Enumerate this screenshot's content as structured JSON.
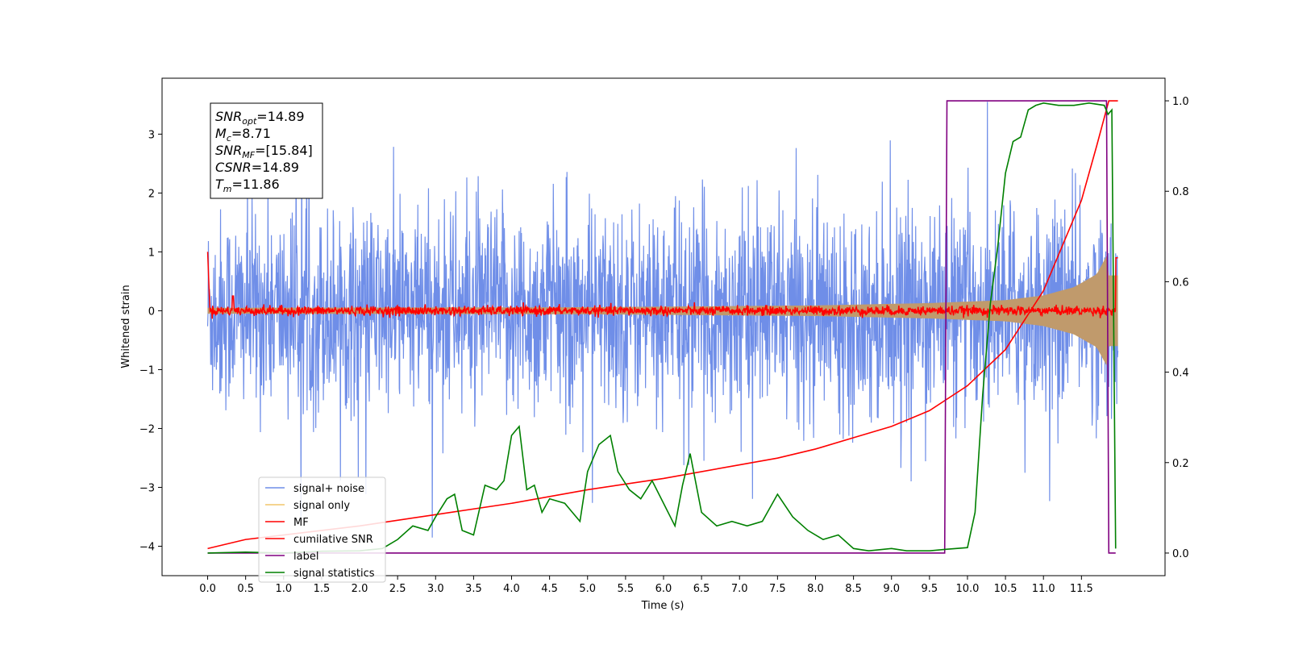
{
  "chart_data": {
    "type": "line",
    "xlabel": "Time (s)",
    "ylabel": "Whitened strain",
    "xlim": [
      -0.6,
      12.6
    ],
    "ylim": [
      -4.5,
      3.95
    ],
    "y2lim": [
      -0.05,
      1.05
    ],
    "xticks": [
      "0.0",
      "0.5",
      "1.0",
      "1.5",
      "2.0",
      "2.5",
      "3.0",
      "3.5",
      "4.0",
      "4.5",
      "5.0",
      "5.5",
      "6.0",
      "6.5",
      "7.0",
      "7.5",
      "8.0",
      "8.5",
      "9.0",
      "9.5",
      "10.0",
      "10.5",
      "11.0",
      "11.5"
    ],
    "xtick_values": [
      0.0,
      0.5,
      1.0,
      1.5,
      2.0,
      2.5,
      3.0,
      3.5,
      4.0,
      4.5,
      5.0,
      5.5,
      6.0,
      6.5,
      7.0,
      7.5,
      8.0,
      8.5,
      9.0,
      9.5,
      10.0,
      10.5,
      11.0,
      11.5
    ],
    "yticks": [
      "−4",
      "−3",
      "−2",
      "−1",
      "0",
      "1",
      "2",
      "3"
    ],
    "ytick_values": [
      -4,
      -3,
      -2,
      -1,
      0,
      1,
      2,
      3
    ],
    "y2ticks": [
      "0.0",
      "0.2",
      "0.4",
      "0.6",
      "0.8",
      "1.0"
    ],
    "y2tick_values": [
      0.0,
      0.2,
      0.4,
      0.6,
      0.8,
      1.0
    ],
    "grid": false,
    "legend_position": "lower-left",
    "annotation_lines": [
      {
        "label": "SNR",
        "sub": "opt",
        "value": "=14.89"
      },
      {
        "label": "M",
        "sub": "c",
        "value": "=8.71"
      },
      {
        "label": "SNR",
        "sub": "MF",
        "value": "=[15.84]"
      },
      {
        "label": "CSNR",
        "sub": "",
        "value": "=14.89"
      },
      {
        "label": "T",
        "sub": "m",
        "value": "=11.86"
      }
    ],
    "series": [
      {
        "name": "signal+ noise",
        "color": "#6f8ee8",
        "axis": "left",
        "kind": "noise",
        "x_range": [
          0,
          11.98
        ],
        "envelope_std": 0.85
      },
      {
        "name": "signal only",
        "color": "#f2c56b",
        "axis": "left",
        "kind": "chirp",
        "x_range": [
          0,
          11.98
        ],
        "amplitude_x": [
          0,
          5,
          8,
          9.5,
          10.5,
          11.0,
          11.4,
          11.7,
          11.86
        ],
        "amplitude_y": [
          0.05,
          0.06,
          0.09,
          0.13,
          0.18,
          0.26,
          0.4,
          0.62,
          1.0
        ]
      },
      {
        "name": "MF",
        "color": "#ff0000",
        "axis": "left",
        "kind": "mf",
        "x_range": [
          0,
          11.98
        ],
        "start_value": 1.0,
        "peak_x": 0.33,
        "peak_y": 0.25,
        "noise_std": 0.04
      },
      {
        "name": "cumilative SNR",
        "color": "#ff0000",
        "axis": "right",
        "x": [
          0.0,
          0.5,
          1.0,
          2.0,
          3.0,
          4.0,
          5.0,
          6.0,
          7.0,
          7.5,
          8.0,
          8.5,
          9.0,
          9.5,
          10.0,
          10.5,
          11.0,
          11.5,
          11.7,
          11.86,
          11.87,
          11.98
        ],
        "y": [
          0.01,
          0.03,
          0.04,
          0.06,
          0.085,
          0.11,
          0.14,
          0.165,
          0.195,
          0.21,
          0.23,
          0.255,
          0.28,
          0.315,
          0.37,
          0.45,
          0.58,
          0.78,
          0.9,
          1.0,
          1.0,
          1.0
        ]
      },
      {
        "name": "label",
        "color": "#800080",
        "axis": "right",
        "x": [
          0.0,
          9.7,
          9.73,
          11.83,
          11.86,
          11.95
        ],
        "y": [
          0.0,
          0.0,
          1.0,
          1.0,
          0.0,
          0.0
        ]
      },
      {
        "name": "signal statistics",
        "color": "#008000",
        "axis": "right",
        "x": [
          0.0,
          0.5,
          1.0,
          1.5,
          2.0,
          2.3,
          2.5,
          2.7,
          2.9,
          3.0,
          3.15,
          3.25,
          3.35,
          3.5,
          3.65,
          3.8,
          3.9,
          4.0,
          4.1,
          4.2,
          4.3,
          4.4,
          4.5,
          4.7,
          4.9,
          5.0,
          5.15,
          5.3,
          5.4,
          5.55,
          5.7,
          5.85,
          6.0,
          6.15,
          6.25,
          6.35,
          6.5,
          6.7,
          6.9,
          7.1,
          7.3,
          7.5,
          7.7,
          7.9,
          8.1,
          8.3,
          8.5,
          8.7,
          9.0,
          9.2,
          9.5,
          9.7,
          10.0,
          10.1,
          10.2,
          10.3,
          10.4,
          10.5,
          10.6,
          10.7,
          10.8,
          10.9,
          11.0,
          11.2,
          11.4,
          11.6,
          11.8,
          11.85,
          11.9,
          11.95
        ],
        "y": [
          0.0,
          0.002,
          0.0,
          0.004,
          0.005,
          0.01,
          0.03,
          0.06,
          0.05,
          0.08,
          0.12,
          0.13,
          0.05,
          0.04,
          0.15,
          0.14,
          0.16,
          0.26,
          0.28,
          0.14,
          0.15,
          0.09,
          0.12,
          0.11,
          0.07,
          0.18,
          0.24,
          0.26,
          0.18,
          0.14,
          0.12,
          0.16,
          0.11,
          0.06,
          0.15,
          0.22,
          0.09,
          0.06,
          0.07,
          0.06,
          0.07,
          0.13,
          0.08,
          0.05,
          0.03,
          0.04,
          0.01,
          0.005,
          0.01,
          0.005,
          0.005,
          0.008,
          0.012,
          0.09,
          0.35,
          0.55,
          0.68,
          0.84,
          0.91,
          0.92,
          0.98,
          0.99,
          0.995,
          0.99,
          0.99,
          0.995,
          0.99,
          0.97,
          0.98,
          0.01
        ]
      }
    ]
  }
}
